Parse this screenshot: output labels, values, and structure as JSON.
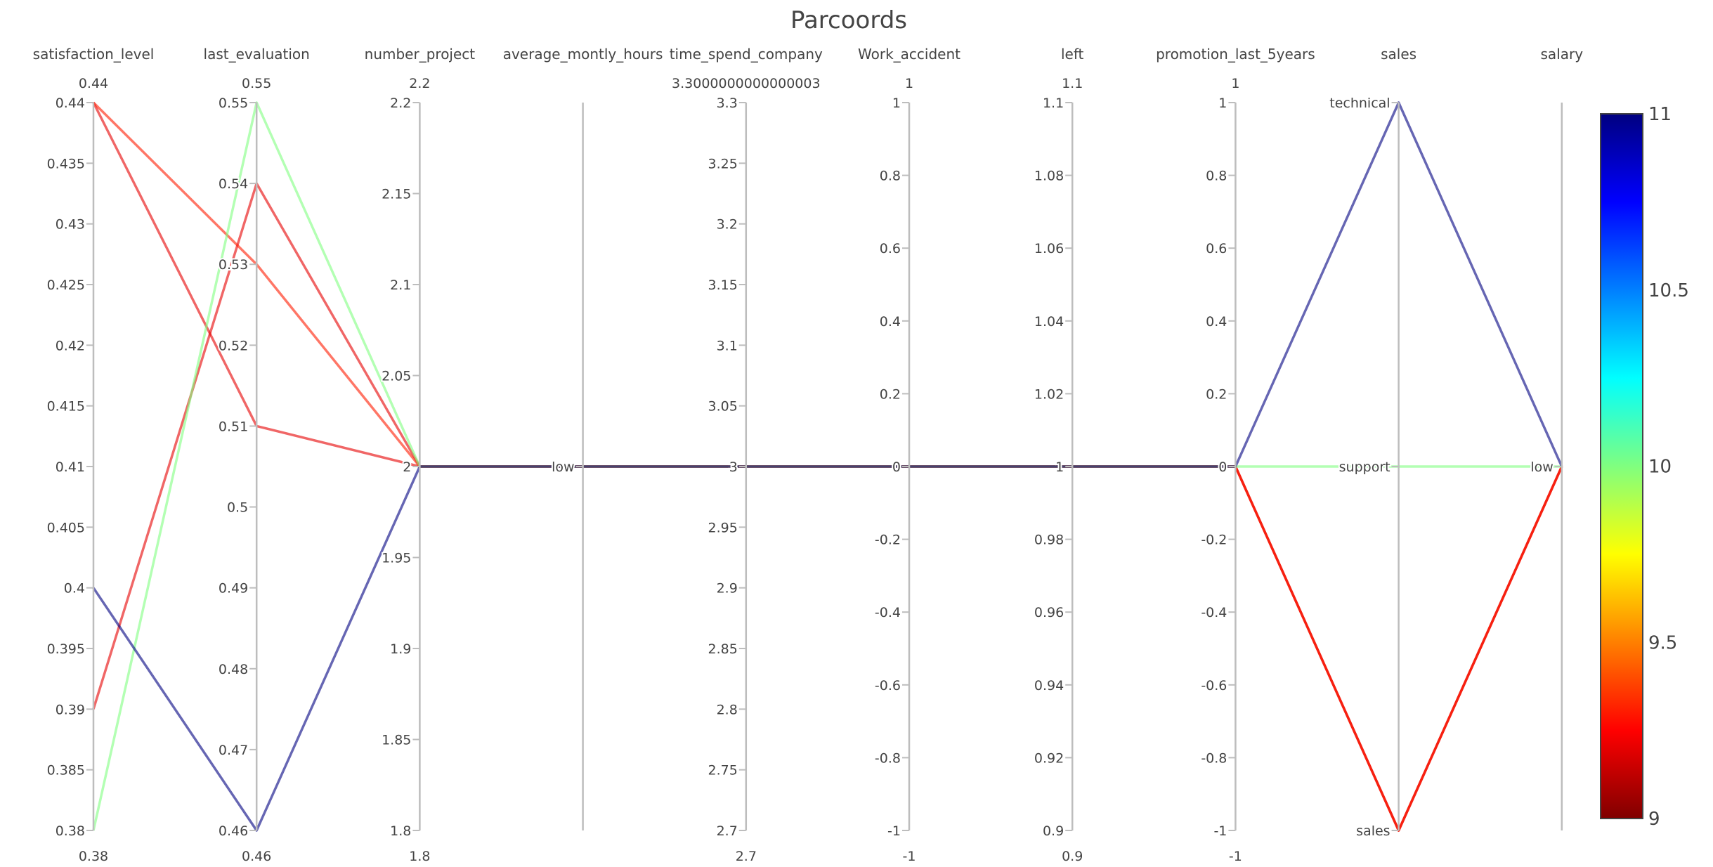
{
  "chart_data": {
    "type": "parcoords",
    "title": "Parcoords",
    "dimensions": [
      {
        "label": "satisfaction_level",
        "range": [
          0.38,
          0.44
        ],
        "range_labels": [
          "0.38",
          "0.44"
        ],
        "ticks": [
          "0.38",
          "0.385",
          "0.39",
          "0.395",
          "0.4",
          "0.405",
          "0.41",
          "0.415",
          "0.42",
          "0.425",
          "0.43",
          "0.435",
          "0.44"
        ]
      },
      {
        "label": "last_evaluation",
        "range": [
          0.46,
          0.55
        ],
        "range_labels": [
          "0.46",
          "0.55"
        ],
        "ticks": [
          "0.46",
          "0.47",
          "0.48",
          "0.49",
          "0.5",
          "0.51",
          "0.52",
          "0.53",
          "0.54",
          "0.55"
        ]
      },
      {
        "label": "number_project",
        "range": [
          1.8,
          2.2
        ],
        "range_labels": [
          "1.8",
          "2.2"
        ],
        "ticks": [
          "1.8",
          "1.85",
          "1.9",
          "1.95",
          "2",
          "2.05",
          "2.1",
          "2.15",
          "2.2"
        ]
      },
      {
        "label": "average_montly_hours",
        "categorical": true,
        "categories": [
          "low"
        ],
        "range_labels": [
          "",
          ""
        ],
        "ticks": [
          "low"
        ]
      },
      {
        "label": "time_spend_company",
        "range": [
          2.7,
          3.3
        ],
        "range_labels": [
          "2.7",
          "3.3000000000000003"
        ],
        "ticks": [
          "2.7",
          "2.75",
          "2.8",
          "2.85",
          "2.9",
          "2.95",
          "3",
          "3.05",
          "3.1",
          "3.15",
          "3.2",
          "3.25",
          "3.3"
        ]
      },
      {
        "label": "Work_accident",
        "range": [
          -1,
          1
        ],
        "range_labels": [
          "-1",
          "1"
        ],
        "ticks": [
          "-1",
          "-0.8",
          "-0.6",
          "-0.4",
          "-0.2",
          "0",
          "0.2",
          "0.4",
          "0.6",
          "0.8",
          "1"
        ]
      },
      {
        "label": "left",
        "range": [
          0.9,
          1.1
        ],
        "range_labels": [
          "0.9",
          "1.1"
        ],
        "ticks": [
          "0.9",
          "0.92",
          "0.94",
          "0.96",
          "0.98",
          "1",
          "1.02",
          "1.04",
          "1.06",
          "1.08",
          "1.1"
        ]
      },
      {
        "label": "promotion_last_5years",
        "range": [
          -1,
          1
        ],
        "range_labels": [
          "-1",
          "1"
        ],
        "ticks": [
          "-1",
          "-0.8",
          "-0.6",
          "-0.4",
          "-0.2",
          "0",
          "0.2",
          "0.4",
          "0.6",
          "0.8",
          "1"
        ]
      },
      {
        "label": "sales",
        "categorical": true,
        "categories": [
          "sales",
          "support",
          "technical"
        ],
        "range_labels": [
          "",
          ""
        ],
        "ticks": [
          "sales",
          "support",
          "technical"
        ]
      },
      {
        "label": "salary",
        "categorical": true,
        "categories": [
          "low"
        ],
        "range_labels": [
          "",
          ""
        ],
        "ticks": [
          "low"
        ]
      }
    ],
    "lines": [
      {
        "color_value": 9.2,
        "values": [
          0.44,
          0.51,
          2,
          "low",
          3,
          0,
          1,
          0,
          "sales",
          "low"
        ]
      },
      {
        "color_value": 9.2,
        "values": [
          0.39,
          0.54,
          2,
          "low",
          3,
          0,
          1,
          0,
          "sales",
          "low"
        ]
      },
      {
        "color_value": 9.3,
        "values": [
          0.44,
          0.53,
          2,
          "low",
          3,
          0,
          1,
          0,
          "sales",
          "low"
        ]
      },
      {
        "color_value": 10,
        "values": [
          0.38,
          0.55,
          2,
          "low",
          3,
          0,
          1,
          0,
          "support",
          "low"
        ]
      },
      {
        "color_value": 11,
        "values": [
          0.4,
          0.46,
          2,
          "low",
          3,
          0,
          1,
          0,
          "technical",
          "low"
        ]
      }
    ],
    "colorscale": "Jet",
    "colorbar": {
      "min": 9,
      "max": 11,
      "ticks": [
        "9",
        "9.5",
        "10",
        "10.5",
        "11"
      ]
    }
  }
}
